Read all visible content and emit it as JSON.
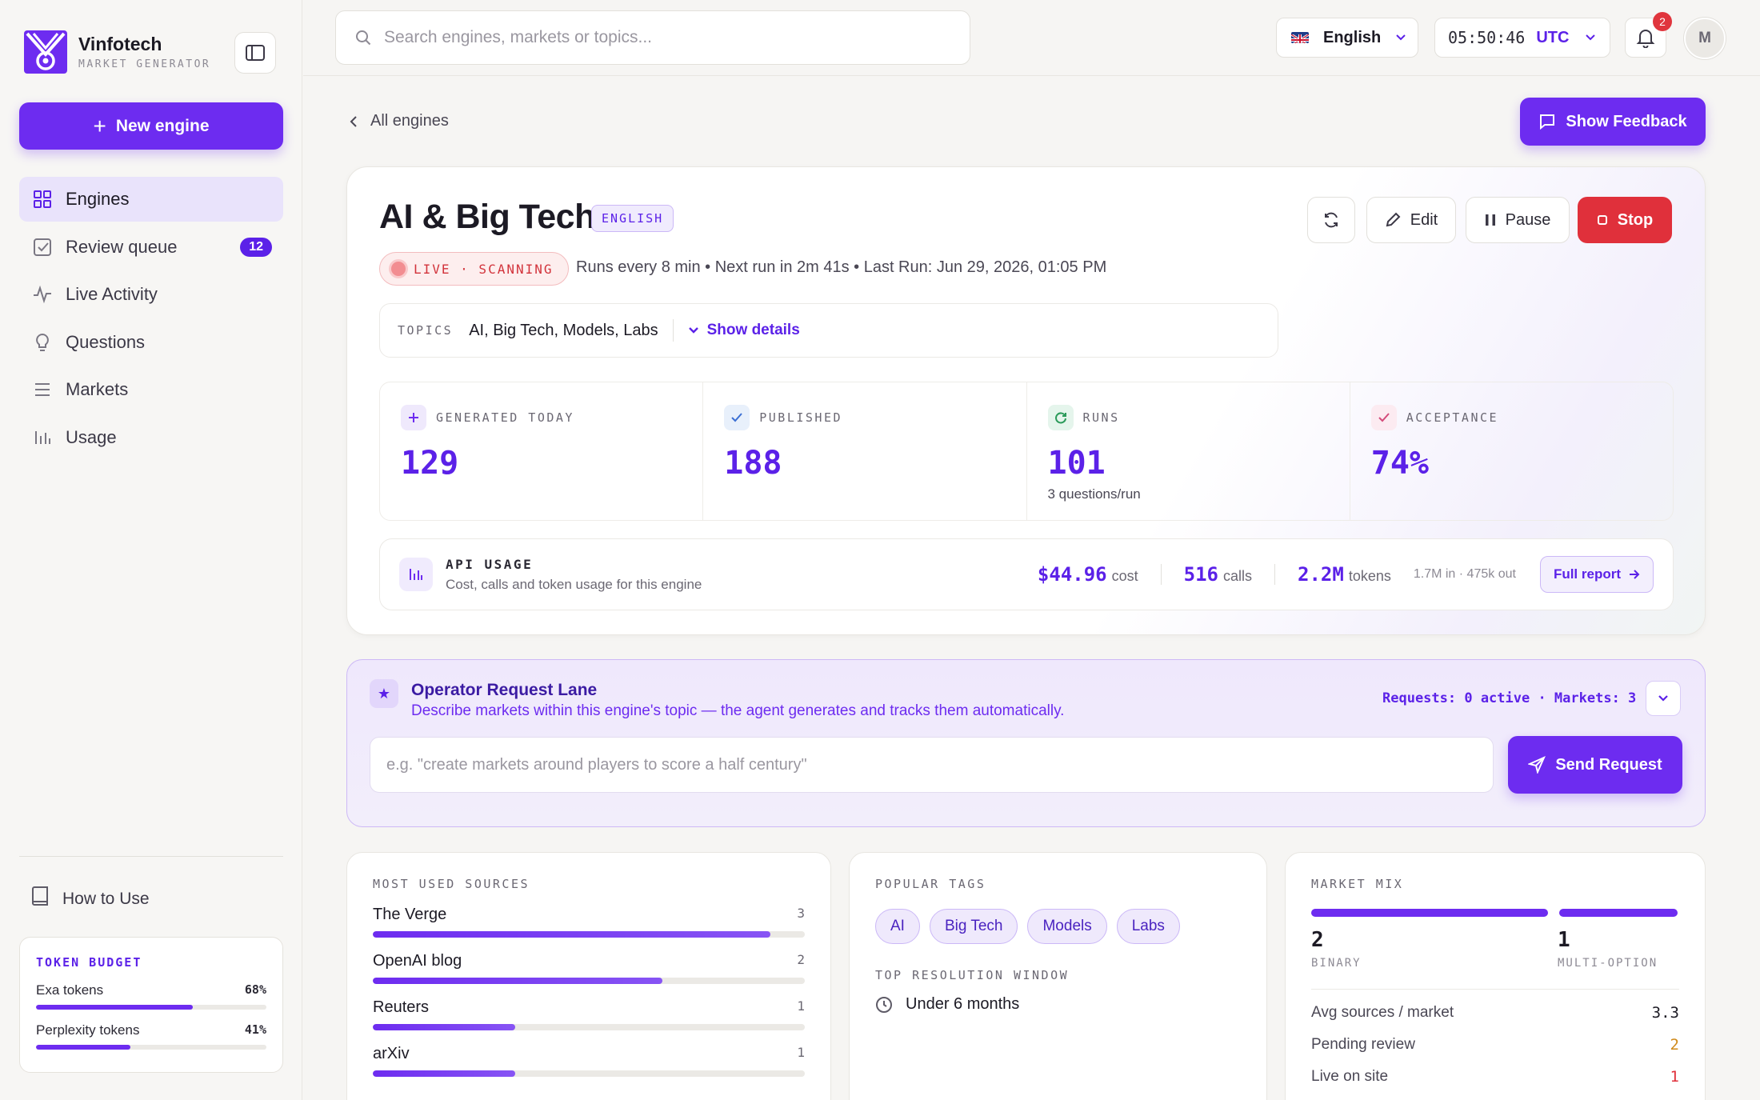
{
  "brand": {
    "name": "Vinfotech",
    "subtitle": "MARKET GENERATOR"
  },
  "sidebar": {
    "new_engine_label": "New engine",
    "items": [
      {
        "label": "Engines",
        "icon": "grid-icon",
        "active": true
      },
      {
        "label": "Review queue",
        "icon": "checkbox-icon",
        "badge": "12"
      },
      {
        "label": "Live Activity",
        "icon": "activity-icon"
      },
      {
        "label": "Questions",
        "icon": "lightbulb-icon"
      },
      {
        "label": "Markets",
        "icon": "list-icon"
      },
      {
        "label": "Usage",
        "icon": "bar-chart-icon"
      }
    ],
    "how_to_use": "How to Use",
    "token_budget": {
      "title": "TOKEN BUDGET",
      "rows": [
        {
          "label": "Exa tokens",
          "percent": "68%",
          "value": 68
        },
        {
          "label": "Perplexity tokens",
          "percent": "41%",
          "value": 41
        }
      ]
    }
  },
  "topbar": {
    "search_placeholder": "Search engines, markets or topics...",
    "language": "English",
    "time": "05:50:46",
    "timezone": "UTC",
    "notifications": "2",
    "avatar_initial": "M"
  },
  "page": {
    "back_label": "All engines",
    "feedback_label": "Show Feedback"
  },
  "engine": {
    "title": "AI & Big Tech",
    "language_tag": "ENGLISH",
    "status": "LIVE · SCANNING",
    "run_info": "Runs every 8 min • Next run in 2m 41s • Last Run: Jun 29, 2026, 01:05 PM",
    "topics_label": "TOPICS",
    "topics": "AI, Big Tech, Models, Labs",
    "show_details": "Show details",
    "actions": {
      "edit": "Edit",
      "pause": "Pause",
      "stop": "Stop"
    },
    "stats": [
      {
        "label": "GENERATED TODAY",
        "value": "129",
        "sub": "",
        "icon": "plus-icon",
        "color": "#efe9fc",
        "ic_color": "#6d2cf0"
      },
      {
        "label": "PUBLISHED",
        "value": "188",
        "sub": "",
        "icon": "check-icon",
        "color": "#e8f0fb",
        "ic_color": "#3b6fd4"
      },
      {
        "label": "RUNS",
        "value": "101",
        "sub": "3 questions/run",
        "icon": "refresh-icon",
        "color": "#e5f5ec",
        "ic_color": "#2b9a5a"
      },
      {
        "label": "ACCEPTANCE",
        "value": "74%",
        "sub": "",
        "icon": "check-icon",
        "color": "#fcebf1",
        "ic_color": "#d44a7a"
      }
    ],
    "api_usage": {
      "title": "API USAGE",
      "subtitle": "Cost, calls and token usage for this engine",
      "cost": "$44.96",
      "cost_unit": "cost",
      "calls": "516",
      "calls_unit": "calls",
      "tokens": "2.2M",
      "tokens_unit": "tokens",
      "detail": "1.7M in · 475k out",
      "full_report": "Full report"
    }
  },
  "lane": {
    "title": "Operator Request Lane",
    "subtitle": "Describe markets within this engine's topic — the agent generates and tracks them automatically.",
    "stats": "Requests: 0 active · Markets: 3",
    "placeholder": "e.g. \"create markets around players to score a half century\"",
    "send_label": "Send Request"
  },
  "sources": {
    "title": "MOST USED SOURCES",
    "items": [
      {
        "name": "The Verge",
        "count": "3",
        "value": 92
      },
      {
        "name": "OpenAI blog",
        "count": "2",
        "value": 67
      },
      {
        "name": "Reuters",
        "count": "1",
        "value": 33
      },
      {
        "name": "arXiv",
        "count": "1",
        "value": 33
      }
    ]
  },
  "tags": {
    "title": "POPULAR TAGS",
    "items": [
      "AI",
      "Big Tech",
      "Models",
      "Labs"
    ],
    "resolution_title": "TOP RESOLUTION WINDOW",
    "resolution_value": "Under 6 months"
  },
  "mix": {
    "title": "MARKET MIX",
    "binary": "2",
    "binary_label": "BINARY",
    "multi": "1",
    "multi_label": "MULTI-OPTION",
    "rows": [
      {
        "label": "Avg sources / market",
        "value": "3.3",
        "color": "#1c1a24"
      },
      {
        "label": "Pending review",
        "value": "2",
        "color": "#d08a1a"
      },
      {
        "label": "Live on site",
        "value": "1",
        "color": "#e0303b"
      }
    ]
  }
}
